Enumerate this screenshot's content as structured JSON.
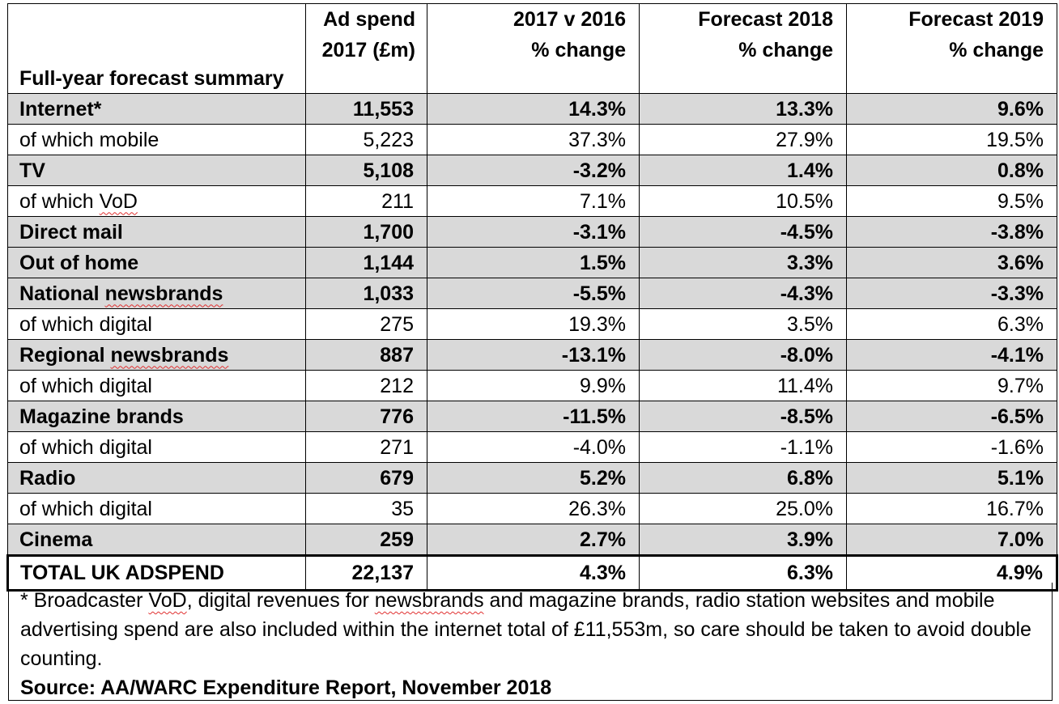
{
  "header": {
    "col0": "Full-year forecast summary",
    "col1_l1": "Ad spend",
    "col1_l2": "2017 (£m)",
    "col2_l1": "2017 v 2016",
    "col2_l2": "% change",
    "col3_l1": "Forecast 2018",
    "col3_l2": "% change",
    "col4_l1": "Forecast 2019",
    "col4_l2": "% change"
  },
  "rows": [
    {
      "label": "Internet*",
      "spend": "11,553",
      "c2017": "14.3%",
      "f2018": "13.3%",
      "f2019": "9.6%",
      "bold": true
    },
    {
      "label": "of which mobile",
      "spend": "5,223",
      "c2017": "37.3%",
      "f2018": "27.9%",
      "f2019": "19.5%",
      "bold": false
    },
    {
      "label": "TV",
      "spend": "5,108",
      "c2017": "-3.2%",
      "f2018": "1.4%",
      "f2019": "0.8%",
      "bold": true
    },
    {
      "label": "of which VoD",
      "spend": "211",
      "c2017": "7.1%",
      "f2018": "10.5%",
      "f2019": "9.5%",
      "bold": false
    },
    {
      "label": "Direct mail",
      "spend": "1,700",
      "c2017": "-3.1%",
      "f2018": "-4.5%",
      "f2019": "-3.8%",
      "bold": true
    },
    {
      "label": "Out of home",
      "spend": "1,144",
      "c2017": "1.5%",
      "f2018": "3.3%",
      "f2019": "3.6%",
      "bold": true
    },
    {
      "label": "National newsbrands",
      "spend": "1,033",
      "c2017": "-5.5%",
      "f2018": "-4.3%",
      "f2019": "-3.3%",
      "bold": true
    },
    {
      "label": "of which digital",
      "spend": "275",
      "c2017": "19.3%",
      "f2018": "3.5%",
      "f2019": "6.3%",
      "bold": false
    },
    {
      "label": "Regional newsbrands",
      "spend": "887",
      "c2017": "-13.1%",
      "f2018": "-8.0%",
      "f2019": "-4.1%",
      "bold": true
    },
    {
      "label": "of which digital",
      "spend": "212",
      "c2017": "9.9%",
      "f2018": "11.4%",
      "f2019": "9.7%",
      "bold": false
    },
    {
      "label": "Magazine brands",
      "spend": "776",
      "c2017": "-11.5%",
      "f2018": "-8.5%",
      "f2019": "-6.5%",
      "bold": true
    },
    {
      "label": "of which digital",
      "spend": "271",
      "c2017": "-4.0%",
      "f2018": "-1.1%",
      "f2019": "-1.6%",
      "bold": false
    },
    {
      "label": "Radio",
      "spend": "679",
      "c2017": "5.2%",
      "f2018": "6.8%",
      "f2019": "5.1%",
      "bold": true
    },
    {
      "label": "of which digital",
      "spend": "35",
      "c2017": "26.3%",
      "f2018": "25.0%",
      "f2019": "16.7%",
      "bold": false
    },
    {
      "label": "Cinema",
      "spend": "259",
      "c2017": "2.7%",
      "f2018": "3.9%",
      "f2019": "7.0%",
      "bold": true
    }
  ],
  "total": {
    "label": "TOTAL UK ADSPEND",
    "spend": "22,137",
    "c2017": "4.3%",
    "f2018": "6.3%",
    "f2019": "4.9%"
  },
  "note": "* Broadcaster VoD, digital revenues for newsbrands and magazine brands, radio station websites and mobile advertising spend are also included within the internet total of £11,553m, so care should be taken to avoid double counting.",
  "source": "Source: AA/WARC Expenditure Report, November 2018"
}
